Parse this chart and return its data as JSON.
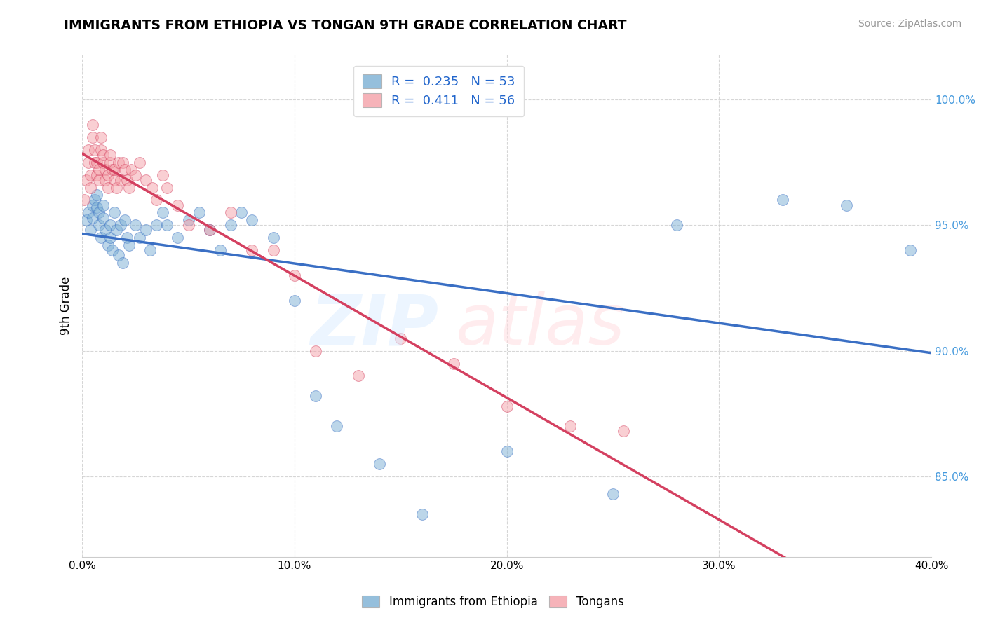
{
  "title": "IMMIGRANTS FROM ETHIOPIA VS TONGAN 9TH GRADE CORRELATION CHART",
  "source": "Source: ZipAtlas.com",
  "ylabel": "9th Grade",
  "legend_label1": "Immigrants from Ethiopia",
  "legend_label2": "Tongans",
  "R1": 0.235,
  "N1": 53,
  "R2": 0.411,
  "N2": 56,
  "color_blue": "#7BAFD4",
  "color_pink": "#F4A0A8",
  "line_blue": "#3A6FC4",
  "line_pink": "#D44060",
  "xlim": [
    0.0,
    0.4
  ],
  "ylim": [
    0.818,
    1.018
  ],
  "xticks": [
    0.0,
    0.1,
    0.2,
    0.3,
    0.4
  ],
  "yticks": [
    0.85,
    0.9,
    0.95,
    1.0
  ],
  "blue_scatter_x": [
    0.002,
    0.003,
    0.004,
    0.005,
    0.005,
    0.006,
    0.007,
    0.007,
    0.008,
    0.008,
    0.009,
    0.01,
    0.01,
    0.011,
    0.012,
    0.013,
    0.013,
    0.014,
    0.015,
    0.016,
    0.017,
    0.018,
    0.019,
    0.02,
    0.021,
    0.022,
    0.025,
    0.027,
    0.03,
    0.032,
    0.035,
    0.038,
    0.04,
    0.045,
    0.05,
    0.055,
    0.06,
    0.065,
    0.07,
    0.075,
    0.08,
    0.09,
    0.1,
    0.11,
    0.12,
    0.14,
    0.16,
    0.2,
    0.25,
    0.28,
    0.33,
    0.36,
    0.39
  ],
  "blue_scatter_y": [
    0.952,
    0.955,
    0.948,
    0.958,
    0.953,
    0.96,
    0.957,
    0.962,
    0.95,
    0.955,
    0.945,
    0.953,
    0.958,
    0.948,
    0.942,
    0.95,
    0.945,
    0.94,
    0.955,
    0.948,
    0.938,
    0.95,
    0.935,
    0.952,
    0.945,
    0.942,
    0.95,
    0.945,
    0.948,
    0.94,
    0.95,
    0.955,
    0.95,
    0.945,
    0.952,
    0.955,
    0.948,
    0.94,
    0.95,
    0.955,
    0.952,
    0.945,
    0.92,
    0.882,
    0.87,
    0.855,
    0.835,
    0.86,
    0.843,
    0.95,
    0.96,
    0.958,
    0.94
  ],
  "pink_scatter_x": [
    0.001,
    0.002,
    0.003,
    0.003,
    0.004,
    0.004,
    0.005,
    0.005,
    0.006,
    0.006,
    0.007,
    0.007,
    0.008,
    0.008,
    0.009,
    0.009,
    0.01,
    0.01,
    0.011,
    0.011,
    0.012,
    0.012,
    0.013,
    0.013,
    0.014,
    0.015,
    0.015,
    0.016,
    0.017,
    0.018,
    0.019,
    0.02,
    0.021,
    0.022,
    0.023,
    0.025,
    0.027,
    0.03,
    0.033,
    0.035,
    0.038,
    0.04,
    0.045,
    0.05,
    0.06,
    0.07,
    0.08,
    0.09,
    0.1,
    0.11,
    0.13,
    0.15,
    0.175,
    0.2,
    0.23,
    0.255
  ],
  "pink_scatter_y": [
    0.96,
    0.968,
    0.975,
    0.98,
    0.97,
    0.965,
    0.985,
    0.99,
    0.975,
    0.98,
    0.97,
    0.975,
    0.968,
    0.972,
    0.98,
    0.985,
    0.975,
    0.978,
    0.972,
    0.968,
    0.965,
    0.97,
    0.975,
    0.978,
    0.972,
    0.968,
    0.972,
    0.965,
    0.975,
    0.968,
    0.975,
    0.972,
    0.968,
    0.965,
    0.972,
    0.97,
    0.975,
    0.968,
    0.965,
    0.96,
    0.97,
    0.965,
    0.958,
    0.95,
    0.948,
    0.955,
    0.94,
    0.94,
    0.93,
    0.9,
    0.89,
    0.905,
    0.895,
    0.878,
    0.87,
    0.868
  ],
  "watermark_zip": "ZIP",
  "watermark_atlas": "atlas",
  "background_color": "#ffffff"
}
